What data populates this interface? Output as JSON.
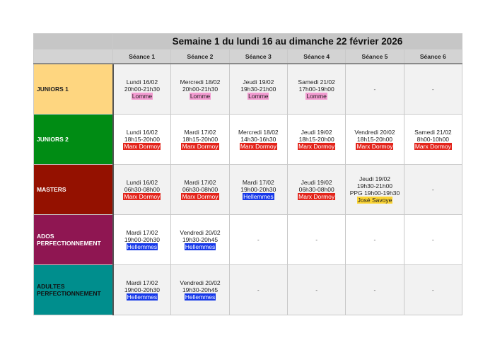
{
  "title": "Semaine 1 du lundi 16 au dimanche 22 février 2026",
  "columns": [
    "Séance 1",
    "Séance 2",
    "Séance 3",
    "Séance 4",
    "Séance 5",
    "Séance 6"
  ],
  "location_colors": {
    "Lomme": {
      "bg": "#f39bd1",
      "fg": "#222222"
    },
    "Marx Dormoy": {
      "bg": "#e3241b",
      "fg": "#ffffff"
    },
    "Hellemmes": {
      "bg": "#1638e8",
      "fg": "#ffffff"
    },
    "José Savoye": {
      "bg": "#fbd434",
      "fg": "#222222"
    }
  },
  "groups": [
    {
      "name": "JUNIORS 1",
      "bg": "#fed680",
      "fg": "#222222",
      "sessions": [
        {
          "lines": [
            "Lundi 16/02",
            "20h00-21h30"
          ],
          "location": "Lomme"
        },
        {
          "lines": [
            "Mercredi 18/02",
            "20h00-21h30"
          ],
          "location": "Lomme"
        },
        {
          "lines": [
            "Jeudi 19/02",
            "19h30-21h00"
          ],
          "location": "Lomme"
        },
        {
          "lines": [
            "Samedi 21/02",
            "17h00-19h00"
          ],
          "location": "Lomme"
        },
        {
          "empty": "-"
        },
        {
          "empty": "-"
        }
      ]
    },
    {
      "name": "JUNIORS 2",
      "bg": "#008c14",
      "fg": "#ffffff",
      "sessions": [
        {
          "lines": [
            "Lundi 16/02",
            "18h15-20h00"
          ],
          "location": "Marx Dormoy"
        },
        {
          "lines": [
            "Mardi 17/02",
            "18h15-20h00"
          ],
          "location": "Marx Dormoy"
        },
        {
          "lines": [
            "Mercredi 18/02",
            "14h30-16h30"
          ],
          "location": "Marx Dormoy"
        },
        {
          "lines": [
            "Jeudi 19/02",
            "18h15-20h00"
          ],
          "location": "Marx Dormoy"
        },
        {
          "lines": [
            "Vendredi 20/02",
            "18h15-20h00"
          ],
          "location": "Marx Dormoy"
        },
        {
          "lines": [
            "Samedi 21/02",
            "8h00-10h00"
          ],
          "location": "Marx Dormoy"
        }
      ]
    },
    {
      "name": "MASTERS",
      "bg": "#941100",
      "fg": "#ffffff",
      "sessions": [
        {
          "lines": [
            "Lundi 16/02",
            "06h30-08h00"
          ],
          "location": "Marx Dormoy"
        },
        {
          "lines": [
            "Mardi 17/02",
            "06h30-08h00"
          ],
          "location": "Marx Dormoy"
        },
        {
          "lines": [
            "Mardi 17/02",
            "19h00-20h30"
          ],
          "location": "Hellemmes"
        },
        {
          "lines": [
            "Jeudi 19/02",
            "06h30-08h00"
          ],
          "location": "Marx Dormoy"
        },
        {
          "lines": [
            "Jeudi 19/02",
            "19h30-21h00",
            "PPG 19h00-19h30"
          ],
          "location": "José Savoye"
        },
        {
          "empty": "-"
        }
      ]
    },
    {
      "name": "ADOS PERFECTIONNEMENT",
      "bg": "#8f1652",
      "fg": "#ffffff",
      "sessions": [
        {
          "lines": [
            "Mardi 17/02",
            "19h00-20h30"
          ],
          "location": "Hellemmes"
        },
        {
          "lines": [
            "Vendredi 20/02",
            "19h30-20h45"
          ],
          "location": "Hellemmes"
        },
        {
          "empty": "-"
        },
        {
          "empty": "-"
        },
        {
          "empty": "-"
        },
        {
          "empty": "-"
        }
      ]
    },
    {
      "name": "ADULTES PERFECTIONNEMENT",
      "bg": "#008e8d",
      "fg": "#111111",
      "sessions": [
        {
          "lines": [
            "Mardi 17/02",
            "19h00-20h30"
          ],
          "location": "Hellemmes"
        },
        {
          "lines": [
            "Vendredi 20/02",
            "19h30-20h45"
          ],
          "location": "Hellemmes"
        },
        {
          "empty": "-"
        },
        {
          "empty": "-"
        },
        {
          "empty": "-"
        },
        {
          "empty": "-"
        }
      ]
    }
  ]
}
